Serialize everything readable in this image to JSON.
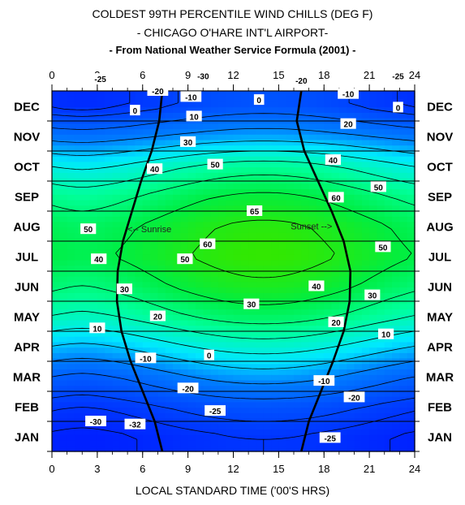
{
  "title_lines": [
    "COLDEST 99TH PERCENTILE WIND CHILLS (DEG F)",
    "- CHICAGO O'HARE INT'L AIRPORT-",
    "- From National Weather Service Formula  (2001) -"
  ],
  "chart_data": {
    "type": "heatmap",
    "xlabel": "LOCAL STANDARD TIME ('00'S HRS)",
    "ylabel": "",
    "xlim": [
      0,
      24
    ],
    "x_ticks": [
      "0",
      "3",
      "6",
      "9",
      "12",
      "15",
      "18",
      "21",
      "24"
    ],
    "y_categories": [
      "JAN",
      "FEB",
      "MAR",
      "APR",
      "MAY",
      "JUN",
      "JUL",
      "AUG",
      "SEP",
      "OCT",
      "NOV",
      "DEC"
    ],
    "color_scale": [
      {
        "value": -32,
        "color": "#0020ff"
      },
      {
        "value": 0,
        "color": "#0080ff"
      },
      {
        "value": 15,
        "color": "#00e8ff"
      },
      {
        "value": 35,
        "color": "#00ff99"
      },
      {
        "value": 50,
        "color": "#00ee44"
      },
      {
        "value": 65,
        "color": "#33e800"
      }
    ],
    "contour_levels": [
      -30,
      -25,
      -20,
      -10,
      0,
      10,
      20,
      30,
      40,
      50,
      60,
      65
    ],
    "month_profile": [
      {
        "month": "JAN",
        "min_value": -32,
        "max_value": -25
      },
      {
        "month": "FEB",
        "min_value": -25,
        "max_value": -15
      },
      {
        "month": "MAR",
        "min_value": -12,
        "max_value": 5
      },
      {
        "month": "APR",
        "min_value": 8,
        "max_value": 25
      },
      {
        "month": "MAY",
        "min_value": 28,
        "max_value": 45
      },
      {
        "month": "JUN",
        "min_value": 40,
        "max_value": 58
      },
      {
        "month": "JUL",
        "min_value": 48,
        "max_value": 65
      },
      {
        "month": "AUG",
        "min_value": 45,
        "max_value": 62
      },
      {
        "month": "SEP",
        "min_value": 35,
        "max_value": 52
      },
      {
        "month": "OCT",
        "min_value": 18,
        "max_value": 35
      },
      {
        "month": "NOV",
        "min_value": -5,
        "max_value": 5
      },
      {
        "month": "DEC",
        "min_value": -28,
        "max_value": -15
      }
    ],
    "contour_labels": [
      {
        "text": "-30",
        "x": 10.0,
        "month": 12.0
      },
      {
        "text": "-25",
        "x": 3.2,
        "month": 11.9
      },
      {
        "text": "-25",
        "x": 22.9,
        "month": 12.0
      },
      {
        "text": "-20",
        "x": 7.0,
        "month": 11.5
      },
      {
        "text": "-20",
        "x": 16.5,
        "month": 11.85
      },
      {
        "text": "-10",
        "x": 9.2,
        "month": 11.3
      },
      {
        "text": "-10",
        "x": 19.6,
        "month": 11.4
      },
      {
        "text": "0",
        "x": 5.5,
        "month": 10.85
      },
      {
        "text": "0",
        "x": 13.7,
        "month": 11.2
      },
      {
        "text": "0",
        "x": 22.9,
        "month": 10.95
      },
      {
        "text": "10",
        "x": 9.4,
        "month": 10.65
      },
      {
        "text": "20",
        "x": 19.6,
        "month": 10.4
      },
      {
        "text": "30",
        "x": 9.0,
        "month": 9.8
      },
      {
        "text": "40",
        "x": 6.8,
        "month": 8.9
      },
      {
        "text": "40",
        "x": 18.6,
        "month": 9.2
      },
      {
        "text": "50",
        "x": 10.8,
        "month": 9.05
      },
      {
        "text": "50",
        "x": 21.6,
        "month": 8.3
      },
      {
        "text": "60",
        "x": 18.8,
        "month": 7.95
      },
      {
        "text": "65",
        "x": 13.4,
        "month": 7.5
      },
      {
        "text": "50",
        "x": 2.4,
        "month": 6.9
      },
      {
        "text": "60",
        "x": 10.3,
        "month": 6.4
      },
      {
        "text": "50",
        "x": 21.9,
        "month": 6.3
      },
      {
        "text": "40",
        "x": 3.1,
        "month": 5.9
      },
      {
        "text": "50",
        "x": 8.8,
        "month": 5.9
      },
      {
        "text": "30",
        "x": 4.8,
        "month": 4.9
      },
      {
        "text": "40",
        "x": 17.5,
        "month": 5.0
      },
      {
        "text": "30",
        "x": 21.2,
        "month": 4.7
      },
      {
        "text": "30",
        "x": 13.2,
        "month": 4.4
      },
      {
        "text": "20",
        "x": 7.0,
        "month": 4.0
      },
      {
        "text": "20",
        "x": 18.8,
        "month": 3.8
      },
      {
        "text": "10",
        "x": 3.0,
        "month": 3.6
      },
      {
        "text": "10",
        "x": 22.1,
        "month": 3.4
      },
      {
        "text": "-10",
        "x": 6.2,
        "month": 2.6
      },
      {
        "text": "0",
        "x": 10.4,
        "month": 2.7
      },
      {
        "text": "-10",
        "x": 18.0,
        "month": 1.85
      },
      {
        "text": "-20",
        "x": 9.0,
        "month": 1.6
      },
      {
        "text": "-20",
        "x": 20.0,
        "month": 1.3
      },
      {
        "text": "-25",
        "x": 10.8,
        "month": 0.85
      },
      {
        "text": "-30",
        "x": 2.9,
        "month": 0.5
      },
      {
        "text": "-32",
        "x": 5.5,
        "month": 0.4
      },
      {
        "text": "-25",
        "x": 18.4,
        "month": -0.05
      }
    ],
    "annotations": [
      {
        "text": "<-- Sunrise",
        "x": 5.0,
        "month": 6.9
      },
      {
        "text": "Sunset -->",
        "x": 15.8,
        "month": 7.0
      }
    ],
    "sunrise_hours": [
      7.3,
      6.8,
      6.0,
      5.2,
      4.6,
      4.3,
      4.35,
      4.7,
      5.3,
      5.9,
      6.6,
      7.1,
      7.3
    ],
    "sunset_hours": [
      16.5,
      17.0,
      17.8,
      18.6,
      19.3,
      19.7,
      19.75,
      19.3,
      18.5,
      17.6,
      16.7,
      16.2,
      16.5
    ]
  }
}
